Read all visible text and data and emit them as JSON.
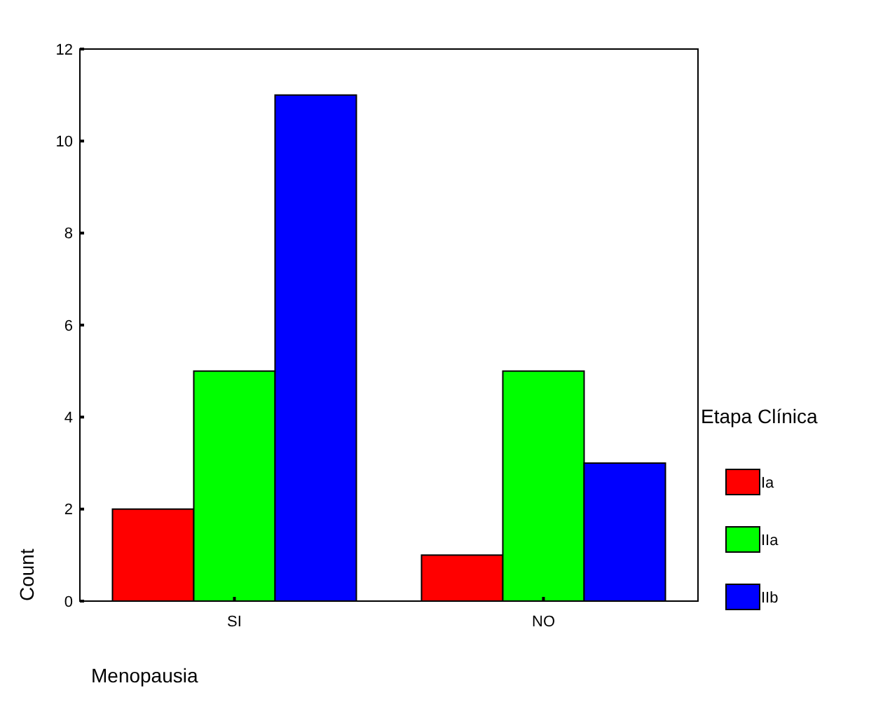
{
  "chart_data": {
    "type": "bar",
    "categories": [
      "SI",
      "NO"
    ],
    "xlabel": "Menopausia",
    "ylabel": "Count",
    "legend_title": "Etapa Clínica",
    "legend": "right",
    "ylim": [
      0,
      12
    ],
    "yticks": [
      0,
      2,
      4,
      6,
      8,
      10,
      12
    ],
    "series": [
      {
        "name": "Ia",
        "color": "#ff0000",
        "values": [
          2,
          1
        ]
      },
      {
        "name": "IIa",
        "color": "#00ff00",
        "values": [
          5,
          5
        ]
      },
      {
        "name": "IIb",
        "color": "#0000ff",
        "values": [
          11,
          3
        ]
      }
    ]
  }
}
